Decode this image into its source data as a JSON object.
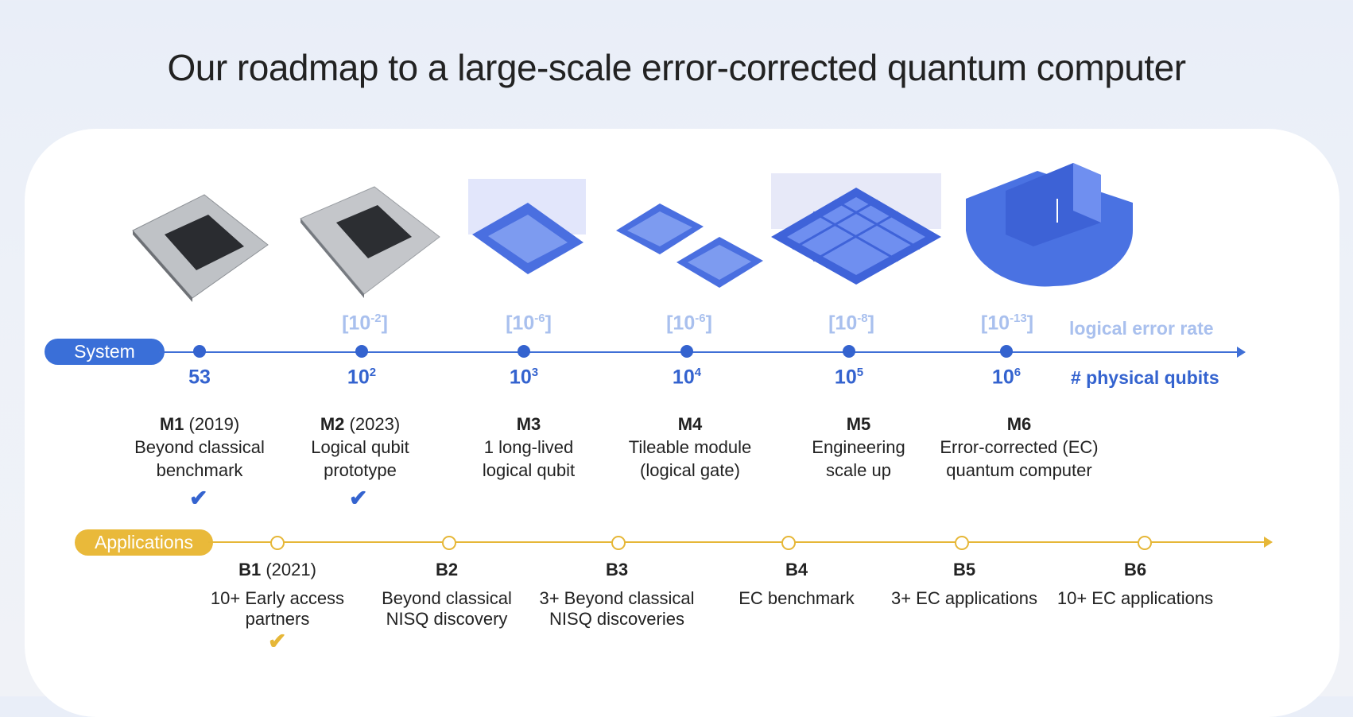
{
  "title": "Our roadmap to a large-scale error-corrected quantum computer",
  "system_label": "System",
  "applications_label": "Applications",
  "legend": {
    "error_rate": "logical error rate",
    "physical_qubits": "#  physical qubits"
  },
  "error_rates": [
    {
      "base": "[10",
      "exp": "-2",
      "close": "]"
    },
    {
      "base": "[10",
      "exp": "-6",
      "close": "]"
    },
    {
      "base": "[10",
      "exp": "-6",
      "close": "]"
    },
    {
      "base": "[10",
      "exp": "-8",
      "close": "]"
    },
    {
      "base": "[10",
      "exp": "-13",
      "close": "]"
    }
  ],
  "qubits": [
    {
      "base": "53",
      "exp": ""
    },
    {
      "base": "10",
      "exp": "2"
    },
    {
      "base": "10",
      "exp": "3"
    },
    {
      "base": "10",
      "exp": "4"
    },
    {
      "base": "10",
      "exp": "5"
    },
    {
      "base": "10",
      "exp": "6"
    }
  ],
  "milestones": [
    {
      "code": "M1",
      "year": "(2019)",
      "line1": "Beyond classical",
      "line2": "benchmark",
      "done": "✔"
    },
    {
      "code": "M2",
      "year": "(2023)",
      "line1": "Logical qubit",
      "line2": "prototype",
      "done": "✔"
    },
    {
      "code": "M3",
      "year": "",
      "line1": "1 long-lived",
      "line2": "logical qubit",
      "done": ""
    },
    {
      "code": "M4",
      "year": "",
      "line1": "Tileable module",
      "line2": "(logical gate)",
      "done": ""
    },
    {
      "code": "M5",
      "year": "",
      "line1": "Engineering",
      "line2": "scale up",
      "done": ""
    },
    {
      "code": "M6",
      "year": "",
      "line1": "Error-corrected (EC)",
      "line2": "quantum computer",
      "done": ""
    }
  ],
  "applications": [
    {
      "code": "B1",
      "year": "(2021)",
      "line1": "10+ Early access",
      "line2": "partners",
      "done": "✔"
    },
    {
      "code": "B2",
      "year": "",
      "line1": "Beyond classical",
      "line2": "NISQ discovery",
      "done": ""
    },
    {
      "code": "B3",
      "year": "",
      "line1": "3+ Beyond classical",
      "line2": "NISQ discoveries",
      "done": ""
    },
    {
      "code": "B4",
      "year": "",
      "line1": "EC benchmark",
      "line2": "",
      "done": ""
    },
    {
      "code": "B5",
      "year": "",
      "line1": "3+ EC applications",
      "line2": "",
      "done": ""
    },
    {
      "code": "B6",
      "year": "",
      "line1": "10+ EC applications",
      "line2": "",
      "done": ""
    }
  ],
  "colors": {
    "system": "#3a6fd8",
    "applications": "#e9b93a",
    "error_rate": "#a9c0ee"
  }
}
